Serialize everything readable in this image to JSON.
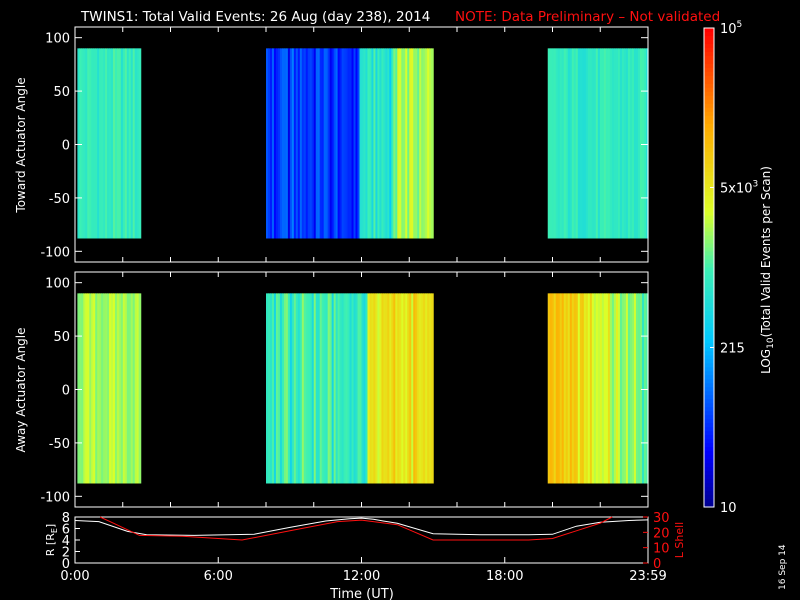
{
  "header": {
    "title": "TWINS1: Total Valid Events: 26 Aug (day 238), 2014",
    "note": "NOTE: Data Preliminary – Not validated"
  },
  "footer": {
    "stamp": "16 Sep 14"
  },
  "colors": {
    "note": "#ff1010",
    "axes": "#ffffff",
    "lshell": "#ff1010",
    "radius": "#ffffff",
    "background": "#000000"
  },
  "chart_data": [
    {
      "type": "heatmap",
      "name": "panel-top",
      "ylabel": "Toward Actuator Angle",
      "xlim": [
        0,
        24
      ],
      "ylim": [
        -110,
        110
      ],
      "yticks": [
        "100",
        "50",
        "0",
        "-50",
        "-100"
      ],
      "angle_range": [
        -88,
        90
      ],
      "segments": [
        {
          "start": 0.1,
          "end": 2.75,
          "level": 0.48
        },
        {
          "start": 8.0,
          "end": 15.0,
          "level": 0.22
        },
        {
          "start": 19.8,
          "end": 24.0,
          "level": 0.47
        }
      ]
    },
    {
      "type": "heatmap",
      "name": "panel-middle",
      "ylabel": "Away Actuator Angle",
      "xlim": [
        0,
        24
      ],
      "ylim": [
        -110,
        110
      ],
      "yticks": [
        "100",
        "50",
        "0",
        "-50",
        "-100"
      ],
      "angle_range": [
        -88,
        90
      ],
      "segments": [
        {
          "start": 0.1,
          "end": 2.75,
          "level": 0.58
        },
        {
          "start": 8.0,
          "end": 15.0,
          "level": 0.55
        },
        {
          "start": 19.8,
          "end": 24.0,
          "level": 0.62
        }
      ]
    },
    {
      "type": "line",
      "name": "orbit",
      "ylabel_left": "R [R",
      "ylabel_left_sub": "E",
      "ylabel_left_end": "]",
      "ylabel_right": "L Shell",
      "yticks_left": [
        "8",
        "6",
        "4",
        "2",
        "0"
      ],
      "yticks_right": [
        "30",
        "20",
        "10",
        "0"
      ],
      "xticks": [
        "0:00",
        "6:00",
        "12:00",
        "18:00",
        "23:59"
      ],
      "xlabel": "Time (UT)",
      "ylim_left": [
        0,
        8
      ],
      "ylim_right": [
        0,
        30
      ],
      "series": [
        {
          "axis": "left",
          "x": [
            0,
            1,
            2.2,
            3,
            5,
            7.5,
            9,
            10.5,
            11.5,
            12,
            12.5,
            13.5,
            15,
            17,
            19,
            20,
            21,
            22,
            23.2,
            24
          ],
          "y": [
            7.4,
            7.2,
            5.5,
            4.9,
            4.8,
            5.0,
            6.2,
            7.3,
            7.7,
            7.8,
            7.6,
            6.9,
            5.1,
            4.9,
            4.9,
            5.0,
            6.4,
            7.1,
            7.4,
            7.5
          ]
        },
        {
          "axis": "right",
          "x": [
            1.05,
            1.6,
            2.7,
            4.5,
            7.0,
            9.0,
            11.0,
            12.0,
            13.5,
            15.0,
            17.0,
            19.0,
            20.0,
            21.0,
            22.0,
            22.5
          ],
          "y": [
            30,
            26,
            18,
            17.5,
            15,
            21,
            27,
            28,
            25,
            15,
            15,
            15,
            16,
            21,
            26,
            30
          ]
        }
      ]
    },
    {
      "type": "colorbar",
      "name": "colorbar",
      "label_prefix": "LOG",
      "label_sub": "10",
      "label_suffix": "(Total Valid Events per Scan)",
      "tick_labels": [
        "10",
        "215",
        "5x10",
        "3",
        "10",
        "5"
      ],
      "ticks": [
        {
          "text": "10",
          "level": 0.0
        },
        {
          "text": "215",
          "level": 0.333
        },
        {
          "text": "5x10",
          "sup": "3",
          "level": 0.667
        },
        {
          "text": "10",
          "sup": "5",
          "level": 1.0
        }
      ]
    }
  ]
}
